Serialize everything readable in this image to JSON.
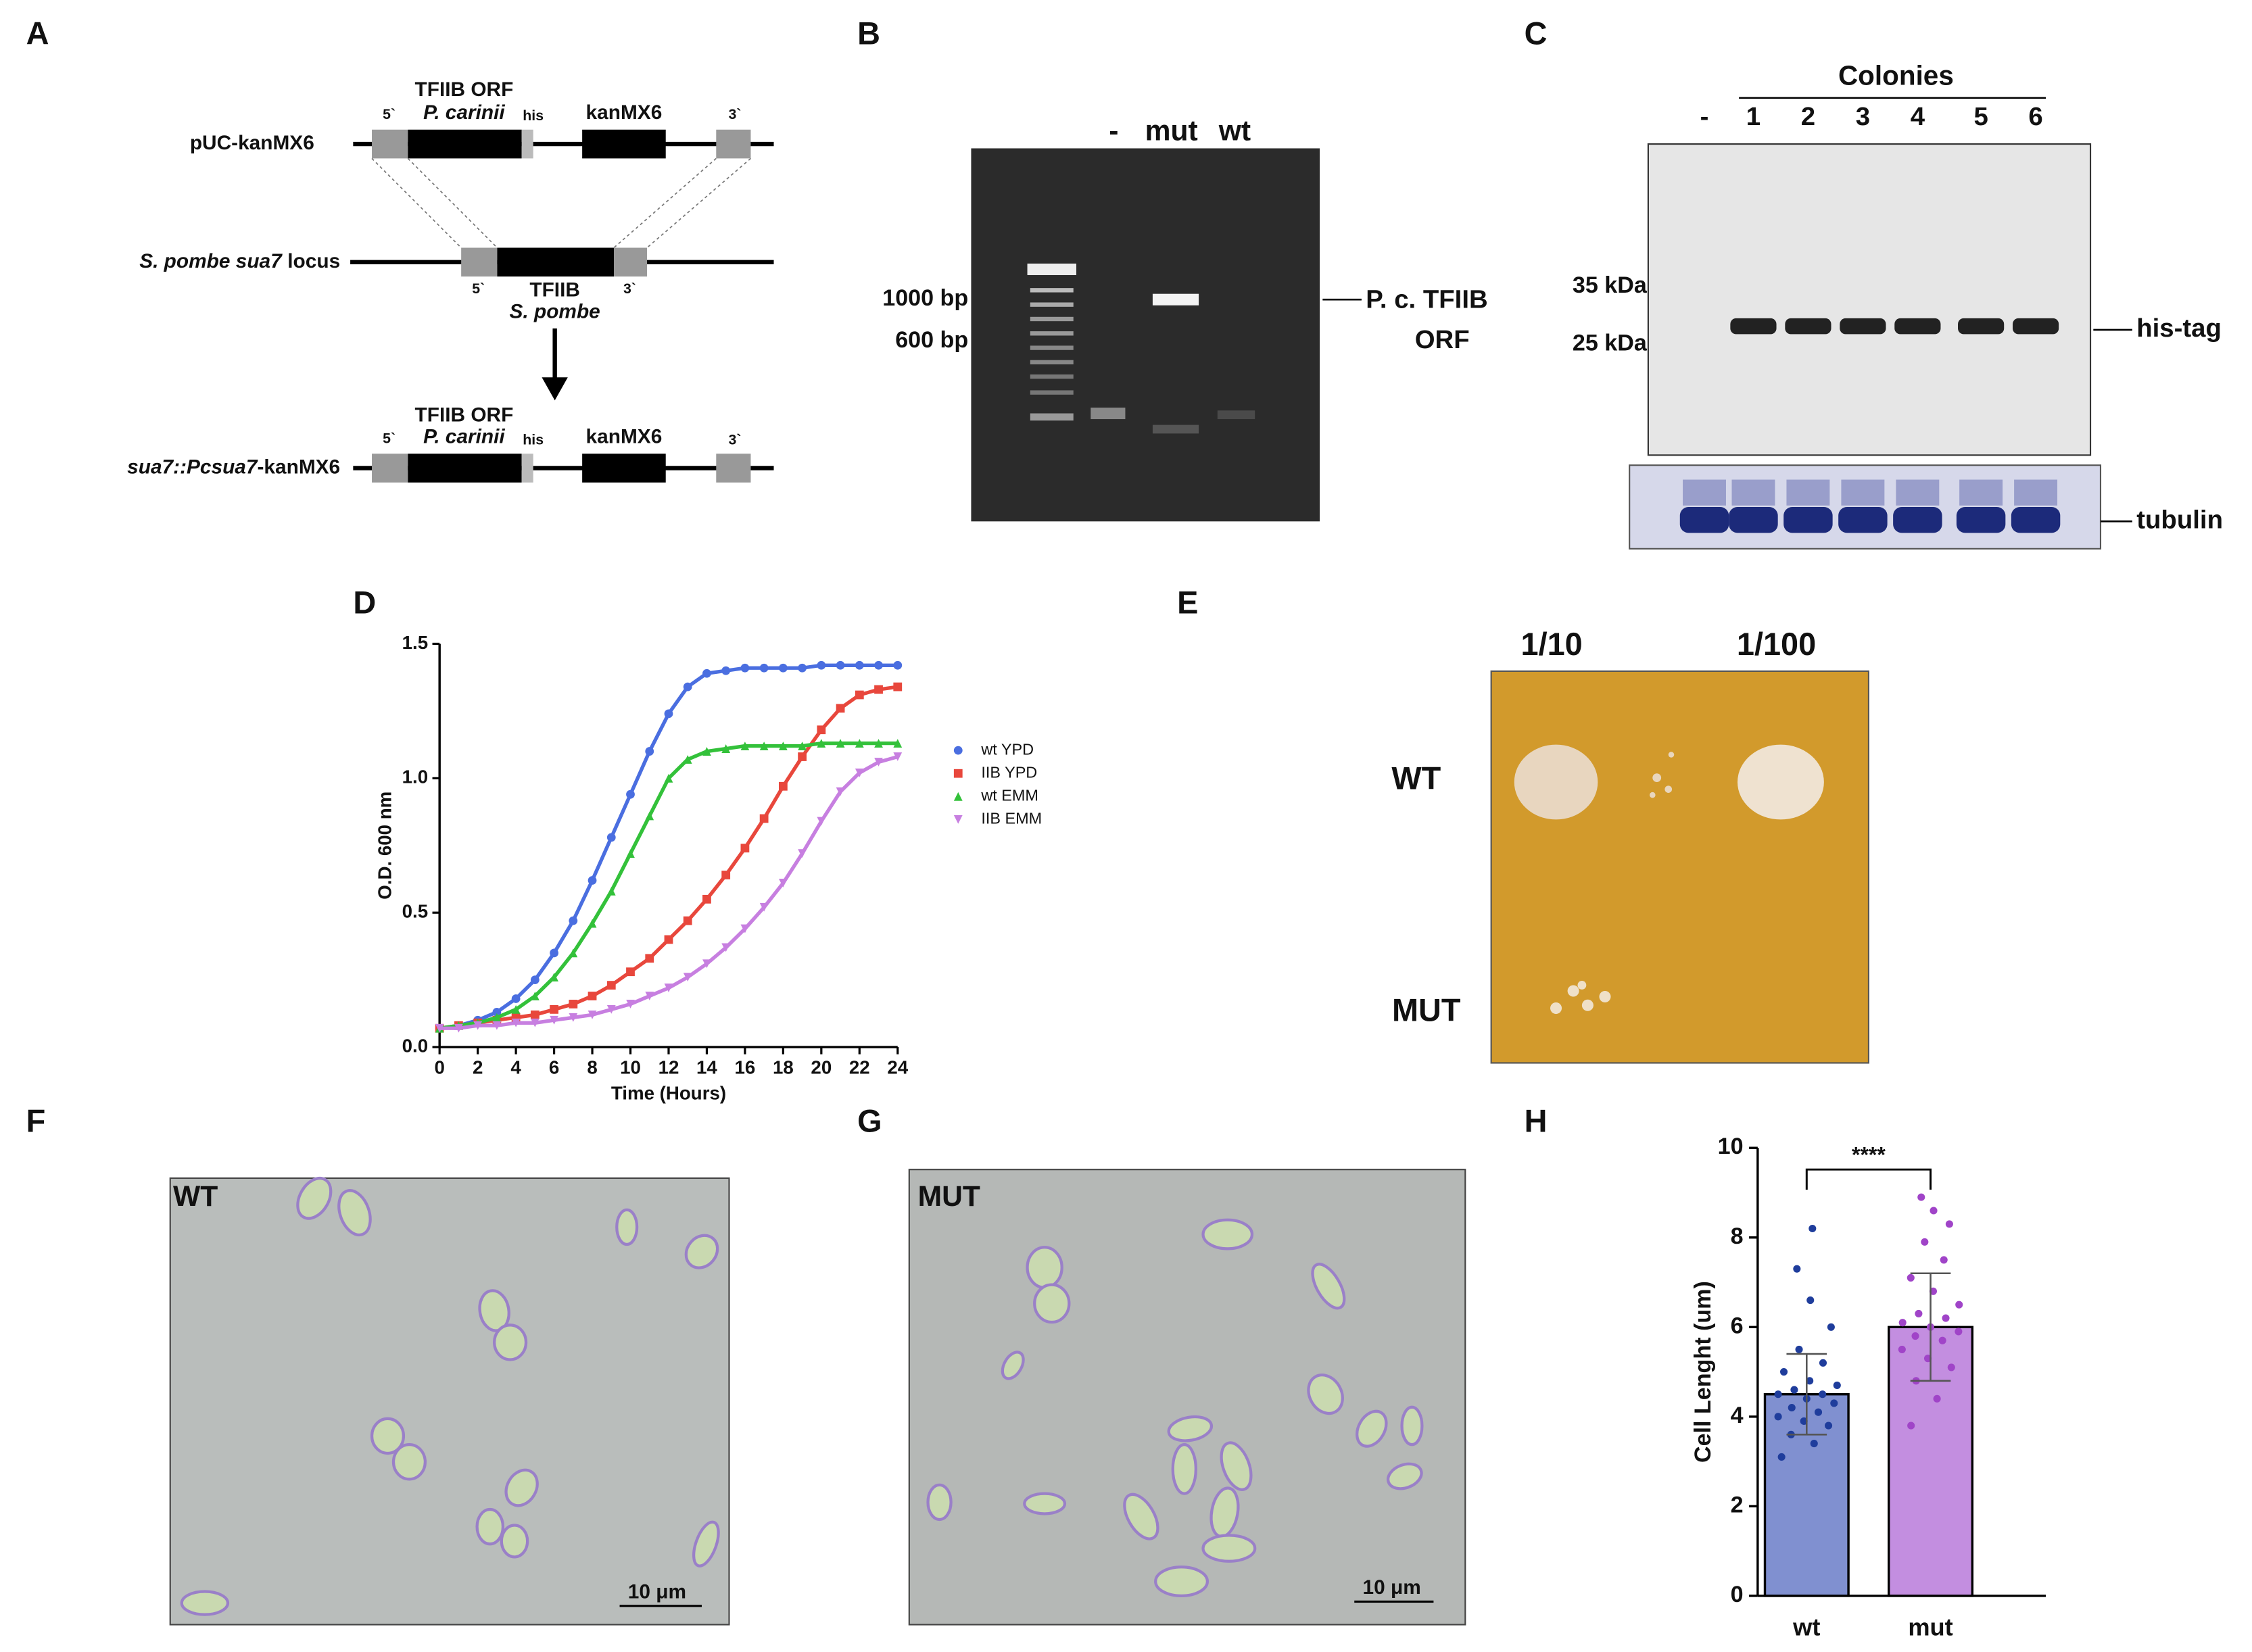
{
  "panel_labels": [
    "A",
    "B",
    "C",
    "D",
    "E",
    "F",
    "G",
    "H"
  ],
  "panel_a": {
    "construct_1": {
      "name": "pUC-kanMX6",
      "orf": "TFIIB ORF",
      "species": "P. carinii",
      "tag": "his",
      "marker": "kanMX6",
      "five": "5`",
      "three": "3`"
    },
    "locus": {
      "name_italic": "S. pombe sua7",
      "name_plain": "locus",
      "gene": "TFIIB",
      "species": "S. pombe",
      "five": "5`",
      "three": "3`"
    },
    "construct_2": {
      "name_italic": "sua7::Pcsua7",
      "name_plain": "-kanMX6",
      "orf": "TFIIB ORF",
      "species": "P. carinii",
      "tag": "his",
      "marker": "kanMX6",
      "five": "5`",
      "three": "3`"
    }
  },
  "panel_b": {
    "lanes": [
      "-",
      "mut",
      "wt"
    ],
    "markers": [
      "1000 bp",
      "600 bp"
    ],
    "band_label": [
      "P. c. TFIIB",
      "ORF"
    ]
  },
  "panel_c": {
    "header": "Colonies",
    "lanes": [
      "-",
      "1",
      "2",
      "3",
      "4",
      "5",
      "6"
    ],
    "markers": [
      "35 kDa",
      "25 kDa"
    ],
    "band_label": "his-tag",
    "loading_label": "tubulin"
  },
  "chart_data": [
    {
      "type": "line",
      "xlabel": "Time (Hours)",
      "ylabel": "O.D. 600 nm",
      "x": [
        0,
        1,
        2,
        3,
        4,
        5,
        6,
        7,
        8,
        9,
        10,
        11,
        12,
        13,
        14,
        15,
        16,
        17,
        18,
        19,
        20,
        21,
        22,
        23,
        24
      ],
      "xlim": [
        0,
        24
      ],
      "xticks": [
        0,
        2,
        4,
        6,
        8,
        10,
        12,
        14,
        16,
        18,
        20,
        22,
        24
      ],
      "ylim": [
        0,
        1.5
      ],
      "yticks": [
        {
          "value": 0,
          "label": "0.0"
        },
        {
          "value": 0.5,
          "label": "0.5"
        },
        {
          "value": 1,
          "label": "1.0"
        },
        1.5
      ],
      "legend": "right",
      "series": [
        {
          "name": "wt YPD",
          "color": "#4a6ee0",
          "marker": "circle",
          "values": [
            0.07,
            0.08,
            0.1,
            0.13,
            0.18,
            0.25,
            0.35,
            0.47,
            0.62,
            0.78,
            0.94,
            1.1,
            1.24,
            1.34,
            1.39,
            1.4,
            1.41,
            1.41,
            1.41,
            1.41,
            1.42,
            1.42,
            1.42,
            1.42,
            1.42
          ]
        },
        {
          "name": "IIB YPD",
          "color": "#e8473c",
          "marker": "square",
          "values": [
            0.07,
            0.08,
            0.09,
            0.1,
            0.11,
            0.12,
            0.14,
            0.16,
            0.19,
            0.23,
            0.28,
            0.33,
            0.4,
            0.47,
            0.55,
            0.64,
            0.74,
            0.85,
            0.97,
            1.08,
            1.18,
            1.26,
            1.31,
            1.33,
            1.34
          ]
        },
        {
          "name": "wt EMM",
          "color": "#33c13a",
          "marker": "triangle",
          "values": [
            0.07,
            0.08,
            0.09,
            0.11,
            0.14,
            0.19,
            0.26,
            0.35,
            0.46,
            0.58,
            0.72,
            0.86,
            1.0,
            1.07,
            1.1,
            1.11,
            1.12,
            1.12,
            1.12,
            1.12,
            1.13,
            1.13,
            1.13,
            1.13,
            1.13
          ]
        },
        {
          "name": "IIB EMM",
          "color": "#c77fe0",
          "marker": "triangle-down",
          "values": [
            0.07,
            0.07,
            0.08,
            0.08,
            0.09,
            0.09,
            0.1,
            0.11,
            0.12,
            0.14,
            0.16,
            0.19,
            0.22,
            0.26,
            0.31,
            0.37,
            0.44,
            0.52,
            0.61,
            0.72,
            0.84,
            0.95,
            1.02,
            1.06,
            1.08
          ]
        }
      ]
    },
    {
      "type": "bar",
      "ylabel": "Cell Lenght (um)",
      "categories": [
        "wt",
        "mut"
      ],
      "values": [
        4.5,
        6.0
      ],
      "errors": [
        0.9,
        1.2
      ],
      "colors": [
        "#8090d0",
        "#c38ee0"
      ],
      "point_colors": [
        "#1f3d9c",
        "#a044c8"
      ],
      "points": [
        [
          3.1,
          3.4,
          3.6,
          3.8,
          3.9,
          4.0,
          4.1,
          4.2,
          4.3,
          4.4,
          4.5,
          4.5,
          4.6,
          4.7,
          4.8,
          5.0,
          5.2,
          5.5,
          6.0,
          6.6,
          7.3,
          8.2
        ],
        [
          3.8,
          4.4,
          4.8,
          5.1,
          5.3,
          5.5,
          5.7,
          5.8,
          5.9,
          6.0,
          6.1,
          6.2,
          6.3,
          6.5,
          6.8,
          7.1,
          7.5,
          7.9,
          8.3,
          8.6,
          8.9
        ]
      ],
      "ylim": [
        0,
        10
      ],
      "yticks": [
        0,
        2,
        4,
        6,
        8,
        10
      ],
      "annotation": "****"
    }
  ],
  "panel_e": {
    "dilutions": [
      "1/10",
      "1/100"
    ],
    "rows": [
      "WT",
      "MUT"
    ]
  },
  "panel_f": {
    "label": "WT",
    "scale_bar": "10 μm"
  },
  "panel_g": {
    "label": "MUT",
    "scale_bar": "10 μm"
  }
}
